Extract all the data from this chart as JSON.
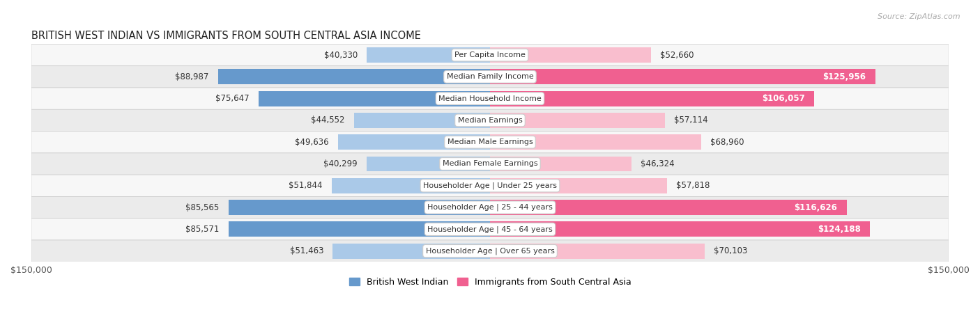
{
  "title": "BRITISH WEST INDIAN VS IMMIGRANTS FROM SOUTH CENTRAL ASIA INCOME",
  "source": "Source: ZipAtlas.com",
  "categories": [
    "Per Capita Income",
    "Median Family Income",
    "Median Household Income",
    "Median Earnings",
    "Median Male Earnings",
    "Median Female Earnings",
    "Householder Age | Under 25 years",
    "Householder Age | 25 - 44 years",
    "Householder Age | 45 - 64 years",
    "Householder Age | Over 65 years"
  ],
  "british_values": [
    40330,
    88987,
    75647,
    44552,
    49636,
    40299,
    51844,
    85565,
    85571,
    51463
  ],
  "immigrant_values": [
    52660,
    125956,
    106057,
    57114,
    68960,
    46324,
    57818,
    116626,
    124188,
    70103
  ],
  "british_labels": [
    "$40,330",
    "$88,987",
    "$75,647",
    "$44,552",
    "$49,636",
    "$40,299",
    "$51,844",
    "$85,565",
    "$85,571",
    "$51,463"
  ],
  "immigrant_labels": [
    "$52,660",
    "$125,956",
    "$106,057",
    "$57,114",
    "$68,960",
    "$46,324",
    "$57,818",
    "$116,626",
    "$124,188",
    "$70,103"
  ],
  "british_color_light": "#aac9e8",
  "british_color_dark": "#6699cc",
  "immigrant_color_light": "#f9bece",
  "immigrant_color_dark": "#f06090",
  "max_value": 150000,
  "legend_british": "British West Indian",
  "legend_immigrant": "Immigrants from South Central Asia",
  "bar_height": 0.7,
  "label_fontsize": 8.5,
  "title_fontsize": 10.5,
  "category_fontsize": 8.0,
  "row_colors": [
    "#f7f7f7",
    "#ebebeb"
  ],
  "border_color": "#cccccc",
  "text_color_dark": "#333333",
  "text_color_white": "#ffffff"
}
